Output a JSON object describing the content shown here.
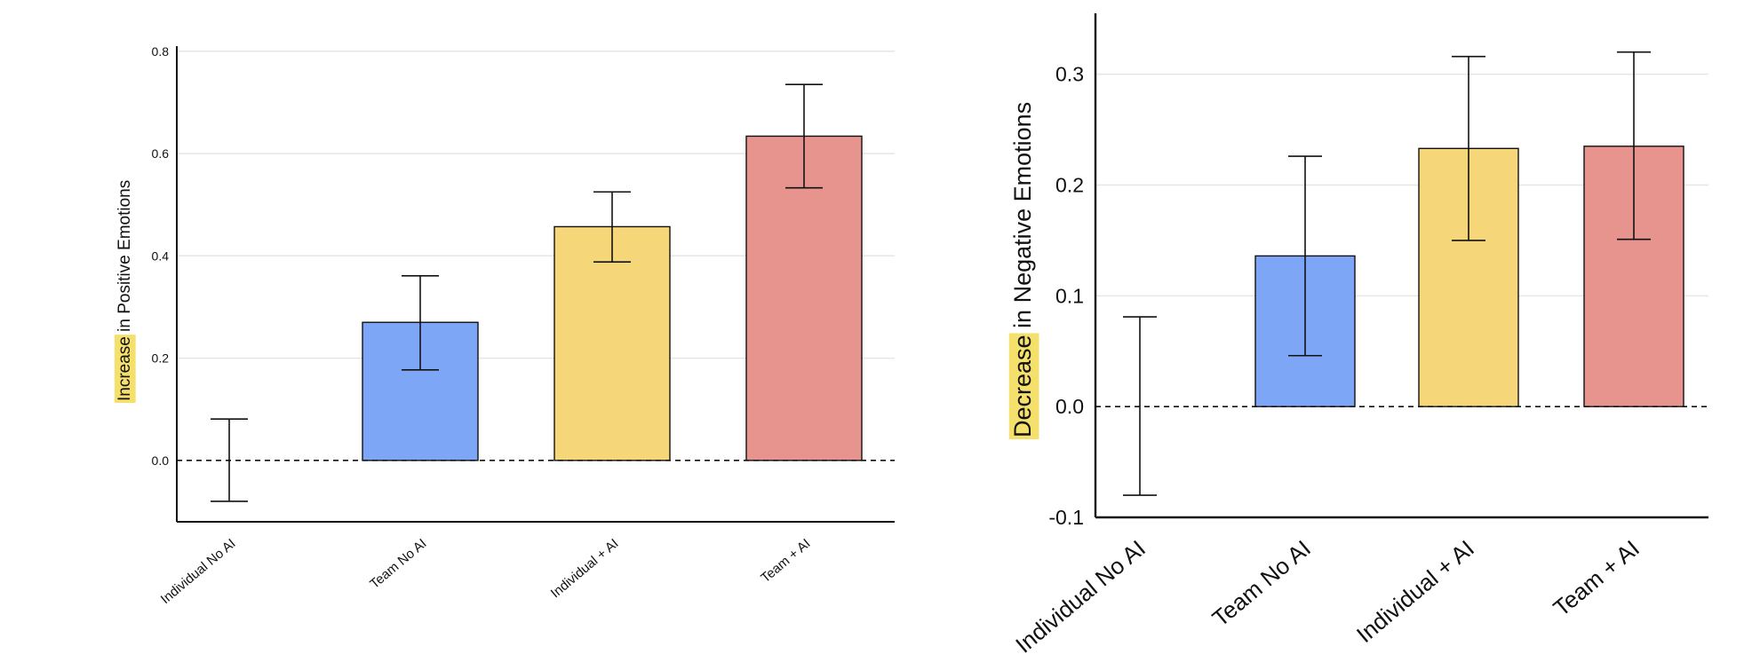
{
  "colors": {
    "no_ai_individual": "#ffffff",
    "team_no_ai": "#7ea6f7",
    "individual_ai": "#f5d77a",
    "team_ai": "#e6948d",
    "highlight": "#f5e06b",
    "grid": "#e6e6e6",
    "axis": "#111111"
  },
  "chart_data": [
    {
      "type": "bar",
      "categories": [
        "Individual No AI",
        "Team No AI",
        "Individual + AI",
        "Team + AI"
      ],
      "values": [
        0.0,
        0.27,
        0.457,
        0.634
      ],
      "error_low": [
        -0.08,
        0.177,
        0.388,
        0.533
      ],
      "error_high": [
        0.081,
        0.361,
        0.525,
        0.735
      ],
      "ylabel_highlight": "Increase",
      "ylabel_rest": " in Positive Emotions",
      "ylim": [
        -0.12,
        0.81
      ],
      "yticks": [
        "0.0",
        "0.2",
        "0.4",
        "0.6",
        "0.8"
      ],
      "reference_line": 0,
      "grid": true
    },
    {
      "type": "bar",
      "categories": [
        "Individual No AI",
        "Team No AI",
        "Individual + AI",
        "Team + AI"
      ],
      "values": [
        0.0,
        0.136,
        0.233,
        0.235
      ],
      "error_low": [
        -0.08,
        0.046,
        0.15,
        0.151
      ],
      "error_high": [
        0.081,
        0.226,
        0.316,
        0.32
      ],
      "ylabel_highlight": "Decrease",
      "ylabel_rest": " in Negative Emotions",
      "ylim": [
        -0.1,
        0.355
      ],
      "yticks": [
        "-0.1",
        "0.0",
        "0.1",
        "0.2",
        "0.3"
      ],
      "reference_line": 0,
      "grid": true
    }
  ]
}
